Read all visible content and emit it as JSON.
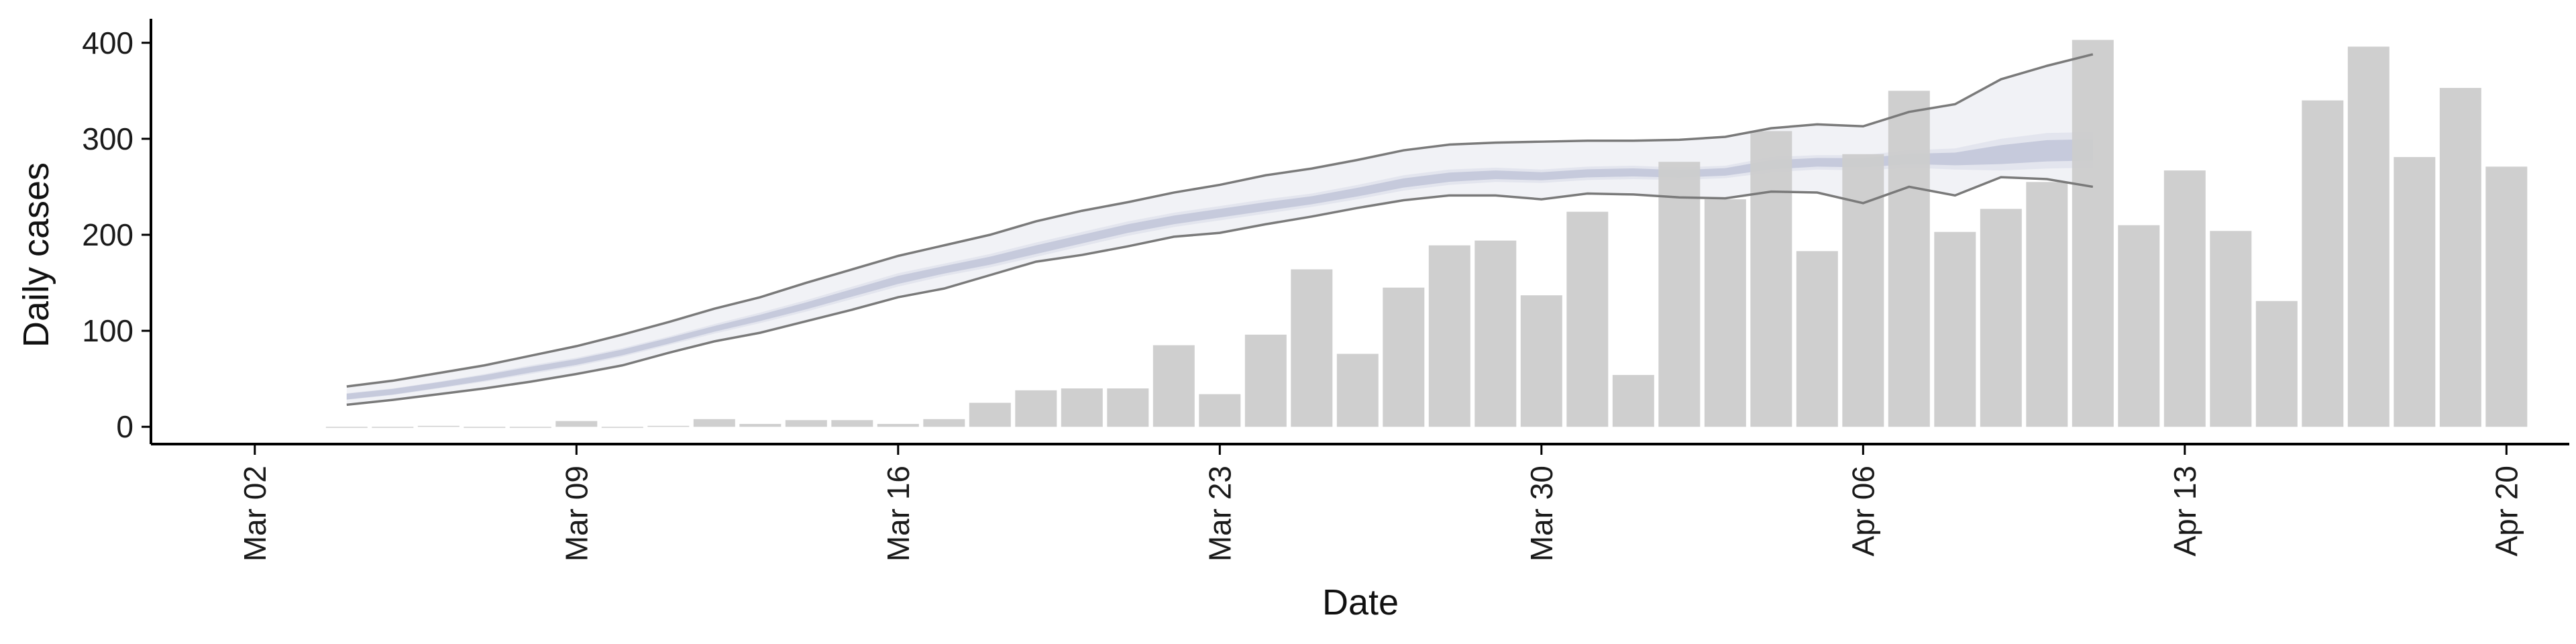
{
  "chart_data": {
    "type": "bar",
    "title": "",
    "xlabel": "Date",
    "ylabel": "Daily cases",
    "ylim": [
      -18,
      425
    ],
    "xlim": [
      "2020-03-01",
      "2020-04-23"
    ],
    "yticks": [
      0,
      100,
      200,
      300,
      400
    ],
    "xticks": [
      {
        "date": "2020-03-02",
        "label": "Mar 02"
      },
      {
        "date": "2020-03-09",
        "label": "Mar 09"
      },
      {
        "date": "2020-03-16",
        "label": "Mar 16"
      },
      {
        "date": "2020-03-23",
        "label": "Mar 23"
      },
      {
        "date": "2020-03-30",
        "label": "Mar 30"
      },
      {
        "date": "2020-04-06",
        "label": "Apr 06"
      },
      {
        "date": "2020-04-13",
        "label": "Apr 13"
      },
      {
        "date": "2020-04-20",
        "label": "Apr 20"
      }
    ],
    "grid": false,
    "colors": {
      "bars": "#cccccc",
      "outer_band": "#f1f2f6",
      "mid_band": "#e3e5ee",
      "inner_band": "#c6cadc",
      "bound_lines": "#7a7a7a",
      "axis": "#000000"
    },
    "bars": {
      "x": [
        "2020-03-04",
        "2020-03-05",
        "2020-03-06",
        "2020-03-07",
        "2020-03-08",
        "2020-03-09",
        "2020-03-10",
        "2020-03-11",
        "2020-03-12",
        "2020-03-13",
        "2020-03-14",
        "2020-03-15",
        "2020-03-16",
        "2020-03-17",
        "2020-03-18",
        "2020-03-19",
        "2020-03-20",
        "2020-03-21",
        "2020-03-22",
        "2020-03-23",
        "2020-03-24",
        "2020-03-25",
        "2020-03-26",
        "2020-03-27",
        "2020-03-28",
        "2020-03-29",
        "2020-03-30",
        "2020-03-31",
        "2020-04-01",
        "2020-04-02",
        "2020-04-03",
        "2020-04-04",
        "2020-04-05",
        "2020-04-06",
        "2020-04-07",
        "2020-04-08",
        "2020-04-09",
        "2020-04-10",
        "2020-04-11",
        "2020-04-12",
        "2020-04-13",
        "2020-04-14",
        "2020-04-15",
        "2020-04-16",
        "2020-04-17",
        "2020-04-18",
        "2020-04-19",
        "2020-04-20"
      ],
      "values": [
        0,
        0,
        1,
        0,
        0,
        6,
        0,
        1,
        8,
        3,
        7,
        7,
        3,
        8,
        25,
        38,
        40,
        40,
        85,
        34,
        96,
        164,
        76,
        145,
        189,
        194,
        137,
        224,
        54,
        276,
        237,
        308,
        183,
        284,
        350,
        203,
        227,
        255,
        403,
        210,
        267,
        204,
        131,
        340,
        396,
        281,
        353,
        271
      ]
    },
    "estimate": {
      "x": [
        "2020-03-04",
        "2020-03-05",
        "2020-03-06",
        "2020-03-07",
        "2020-03-08",
        "2020-03-09",
        "2020-03-10",
        "2020-03-11",
        "2020-03-12",
        "2020-03-13",
        "2020-03-14",
        "2020-03-15",
        "2020-03-16",
        "2020-03-17",
        "2020-03-18",
        "2020-03-19",
        "2020-03-20",
        "2020-03-21",
        "2020-03-22",
        "2020-03-23",
        "2020-03-24",
        "2020-03-25",
        "2020-03-26",
        "2020-03-27",
        "2020-03-28",
        "2020-03-29",
        "2020-03-30",
        "2020-03-31",
        "2020-04-01",
        "2020-04-02",
        "2020-04-03",
        "2020-04-04",
        "2020-04-05",
        "2020-04-06",
        "2020-04-07",
        "2020-04-08",
        "2020-04-09",
        "2020-04-10",
        "2020-04-11"
      ],
      "upper": [
        42,
        48,
        56,
        64,
        74,
        84,
        96,
        109,
        123,
        135,
        150,
        164,
        178,
        189,
        200,
        214,
        225,
        234,
        244,
        252,
        262,
        269,
        278,
        288,
        294,
        296,
        297,
        298,
        298,
        299,
        302,
        311,
        315,
        313,
        328,
        336,
        362,
        376,
        388
      ],
      "inner_upper": [
        35,
        40,
        47,
        55,
        64,
        72,
        82,
        94,
        107,
        119,
        132,
        146,
        160,
        170,
        180,
        192,
        203,
        214,
        223,
        230,
        237,
        243,
        252,
        262,
        268,
        270,
        268,
        271,
        272,
        270,
        272,
        281,
        283,
        283,
        288,
        290,
        300,
        306,
        307
      ],
      "inner_lower": [
        28,
        33,
        40,
        47,
        55,
        63,
        73,
        85,
        97,
        108,
        120,
        133,
        146,
        157,
        166,
        177,
        188,
        199,
        208,
        215,
        222,
        229,
        237,
        246,
        252,
        255,
        254,
        257,
        258,
        257,
        259,
        265,
        268,
        267,
        270,
        268,
        267,
        269,
        270
      ],
      "lower": [
        23,
        28,
        34,
        40,
        47,
        55,
        64,
        77,
        89,
        98,
        110,
        122,
        135,
        144,
        158,
        172,
        179,
        188,
        198,
        202,
        211,
        219,
        228,
        236,
        241,
        241,
        237,
        243,
        242,
        239,
        238,
        245,
        244,
        233,
        250,
        241,
        260,
        258,
        250
      ]
    }
  }
}
